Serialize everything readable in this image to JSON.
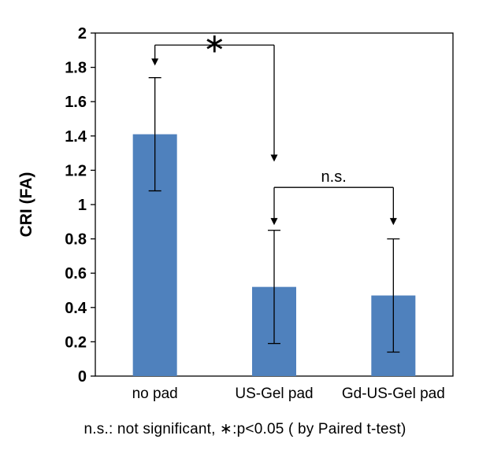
{
  "chart_data": {
    "type": "bar",
    "title": "",
    "xlabel": "",
    "ylabel": "CRI (FA)",
    "ylim": [
      0,
      2
    ],
    "ytick_step": 0.2,
    "ytick_labels": [
      "0",
      "0.2",
      "0.4",
      "0.6",
      "0.8",
      "1",
      "1.2",
      "1.4",
      "1.6",
      "1.8",
      "2"
    ],
    "grid": false,
    "legend": "none",
    "categories": [
      "no pad",
      "US-Gel pad",
      "Gd-US-Gel pad"
    ],
    "values": [
      1.41,
      0.52,
      0.47
    ],
    "error_upper": [
      0.33,
      0.33,
      0.33
    ],
    "error_lower": [
      0.33,
      0.33,
      0.33
    ],
    "bar_color": "#4f81bd",
    "axis_color": "#000000",
    "annotations": [
      {
        "label": "∗",
        "from_index": 0,
        "to_index": 1,
        "line_value": 1.93,
        "arrow_end_values": [
          1.81,
          1.25
        ],
        "label_size": 34,
        "label_dy": 9
      },
      {
        "label": "n.s.",
        "from_index": 1,
        "to_index": 2,
        "line_value": 1.1,
        "arrow_end_values": [
          0.88,
          0.88
        ],
        "label_size": 20,
        "label_dy": -7
      }
    ],
    "footnote": "n.s.: not significant, ∗:p<0.05 ( by Paired t-test)"
  }
}
